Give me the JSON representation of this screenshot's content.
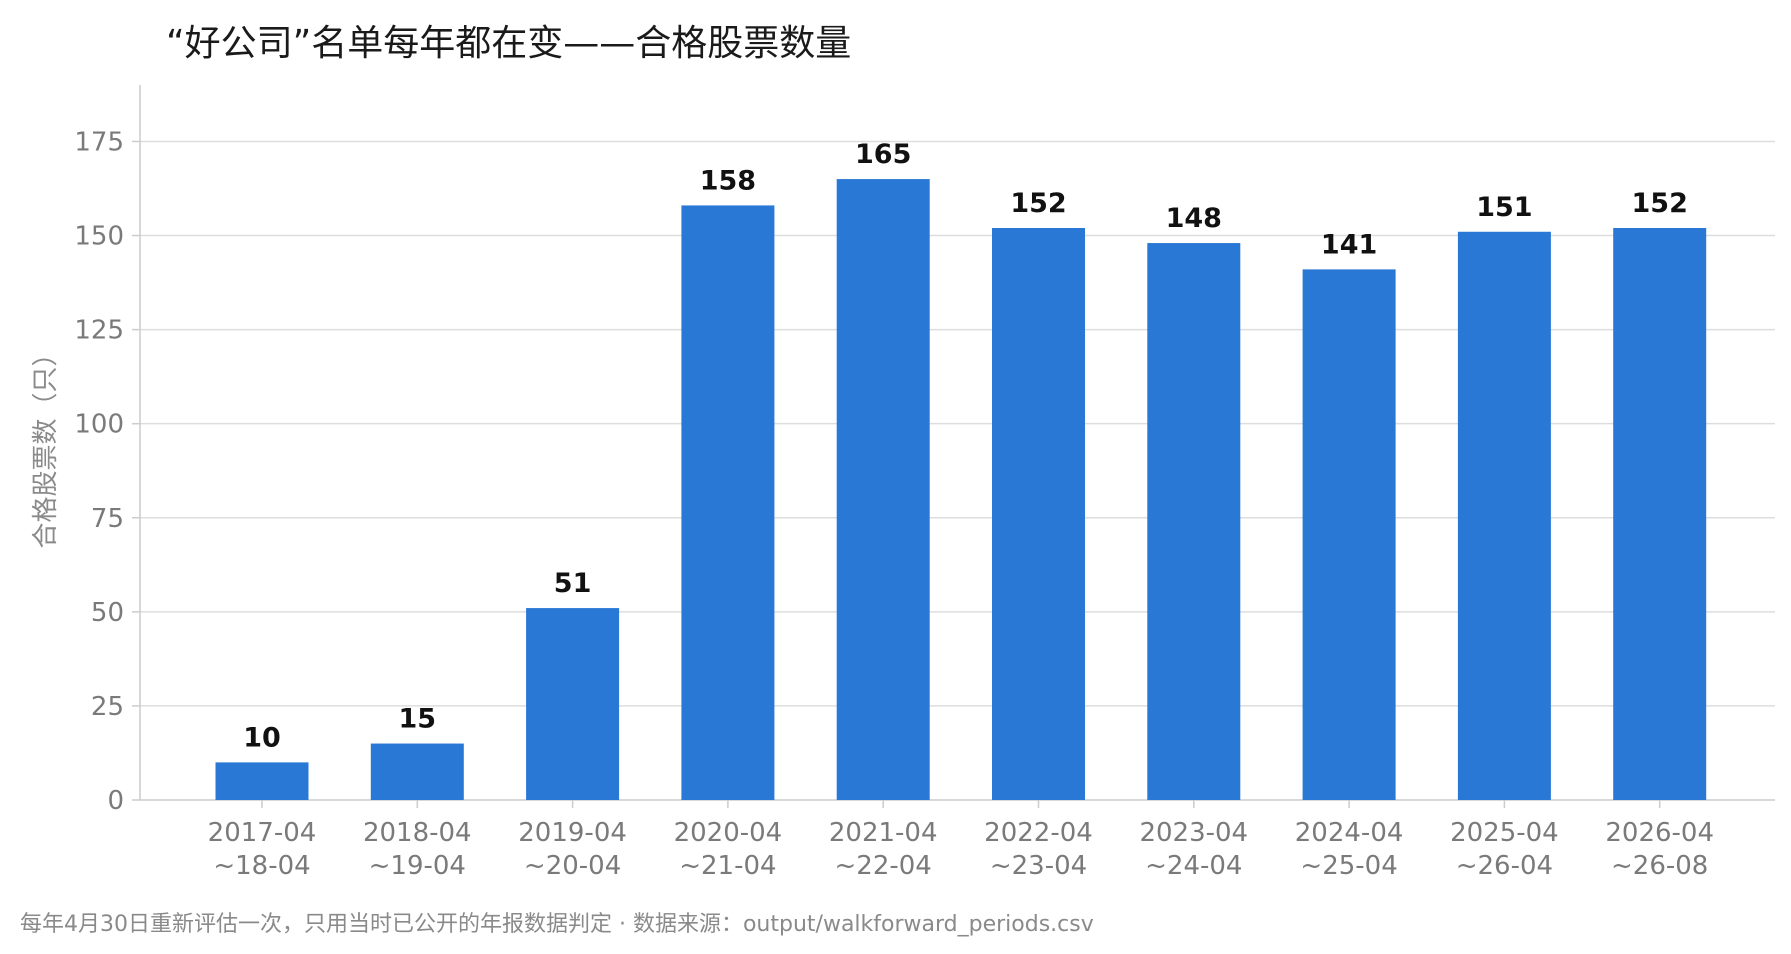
{
  "chart_data": {
    "type": "bar",
    "title": "“好公司”名单每年都在变——合格股票数量",
    "xlabel": "",
    "ylabel": "合格股票数（只）",
    "categories": [
      [
        "2017-04",
        "~18-04"
      ],
      [
        "2018-04",
        "~19-04"
      ],
      [
        "2019-04",
        "~20-04"
      ],
      [
        "2020-04",
        "~21-04"
      ],
      [
        "2021-04",
        "~22-04"
      ],
      [
        "2022-04",
        "~23-04"
      ],
      [
        "2023-04",
        "~24-04"
      ],
      [
        "2024-04",
        "~25-04"
      ],
      [
        "2025-04",
        "~26-04"
      ],
      [
        "2026-04",
        "~26-08"
      ]
    ],
    "values": [
      10,
      15,
      51,
      158,
      165,
      152,
      148,
      141,
      151,
      152
    ],
    "ylim": [
      0,
      190
    ],
    "yticks": [
      0,
      25,
      50,
      75,
      100,
      125,
      150,
      175
    ],
    "grid": true,
    "colors": {
      "bar": "#2a78d6",
      "grid": "#dddddd",
      "axis": "#cccccc"
    },
    "footnote": "每年4月30日重新评估一次，只用当时已公开的年报数据判定 · 数据来源：output/walkforward_periods.csv"
  }
}
